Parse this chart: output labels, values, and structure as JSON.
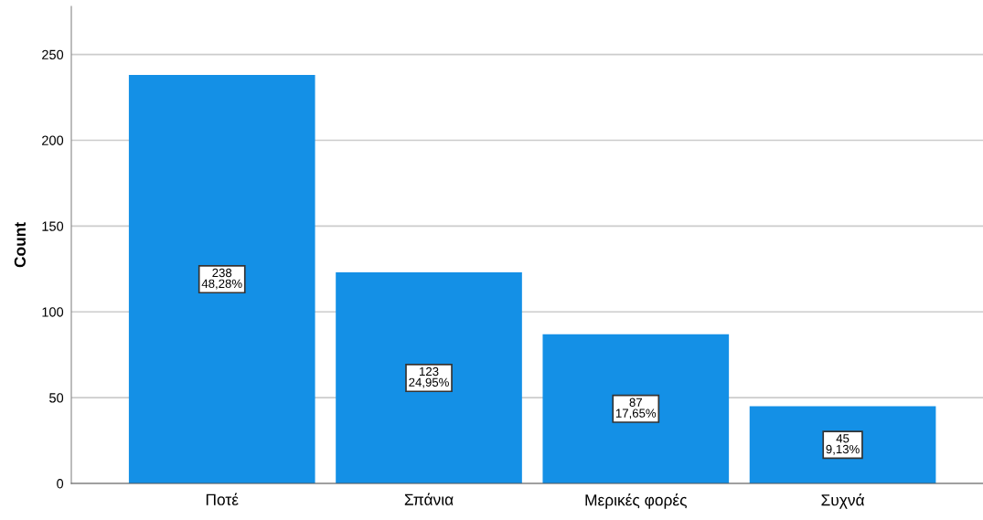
{
  "chart_data": {
    "type": "bar",
    "ylabel": "Count",
    "categories": [
      "Ποτέ",
      "Σπάνια",
      "Μερικές φορές",
      "Συχνά"
    ],
    "values": [
      238,
      123,
      87,
      45
    ],
    "color": "#1490e6",
    "value_labels": [
      "238\n48,28%",
      "123\n24,95%",
      "87\n17,65%",
      "45\n9,13%"
    ],
    "ylim": [
      0,
      278
    ],
    "yticks": [
      0,
      50,
      100,
      150,
      200,
      250
    ],
    "grid": "y",
    "legend": false
  }
}
